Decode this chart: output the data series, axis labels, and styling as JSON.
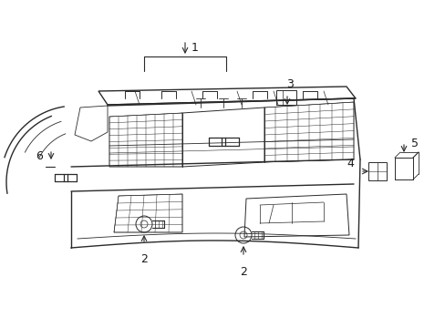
{
  "bg_color": "#ffffff",
  "line_color": "#2a2a2a",
  "label_color": "#1a1a1a",
  "fig_width": 4.89,
  "fig_height": 3.6,
  "dpi": 100
}
